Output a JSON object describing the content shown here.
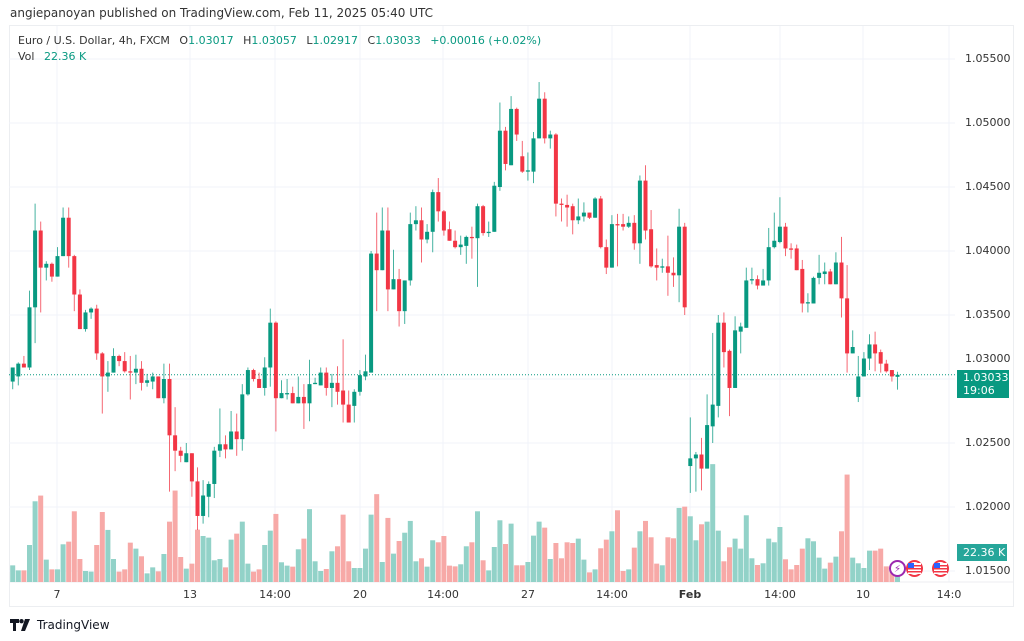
{
  "publish_line": "angiepanoyan published on TradingView.com, Feb 11, 2025 05:40 UTC",
  "legend": {
    "symbol": "Euro / U.S. Dollar, 4h, FXCM",
    "o_label": "O",
    "o": "1.03017",
    "h_label": "H",
    "h": "1.03057",
    "l_label": "L",
    "l": "1.02917",
    "c_label": "C",
    "c": "1.03033",
    "change": "+0.00016 (+0.02%)",
    "vol_label": "Vol",
    "vol": "22.36 K"
  },
  "price_axis": [
    "1.05500",
    "1.05000",
    "1.04500",
    "1.04000",
    "1.03500",
    "1.03000",
    "1.02500",
    "1.02000",
    "1.01500"
  ],
  "time_axis": [
    {
      "label": "7",
      "bold": false
    },
    {
      "label": "13",
      "bold": false
    },
    {
      "label": "14:00",
      "bold": false
    },
    {
      "label": "20",
      "bold": false
    },
    {
      "label": "14:00",
      "bold": false
    },
    {
      "label": "27",
      "bold": false
    },
    {
      "label": "14:00",
      "bold": false
    },
    {
      "label": "Feb",
      "bold": true
    },
    {
      "label": "14:00",
      "bold": false
    },
    {
      "label": "10",
      "bold": false
    },
    {
      "label": "14:0",
      "bold": false
    }
  ],
  "last_price": {
    "value": "1.03033",
    "countdown": "19:06"
  },
  "last_volume": "22.36 K",
  "events": [
    "lightning-icon",
    "us-flag-icon",
    "us-flag-icon"
  ],
  "brand": "TradingView",
  "colors": {
    "up": "#089981",
    "down": "#f23645",
    "vol_up": "#92d2c8",
    "vol_down": "#f7a9a7"
  },
  "chart_data": {
    "type": "candlestick",
    "symbol": "EURUSD",
    "interval": "4h",
    "ylim": [
      1.0135,
      1.0585
    ],
    "volume_unit": "K",
    "columns": [
      "open",
      "high",
      "low",
      "close",
      "volume"
    ],
    "candles": [
      [
        1.0298,
        1.0309,
        1.0292,
        1.0309,
        23.3
      ],
      [
        1.0302,
        1.0313,
        1.0295,
        1.0312,
        16.3
      ],
      [
        1.0312,
        1.0318,
        1.0309,
        1.0309,
        16.3
      ],
      [
        1.0309,
        1.0369,
        1.0307,
        1.0356,
        51.8
      ],
      [
        1.0356,
        1.0437,
        1.0328,
        1.0416,
        113
      ],
      [
        1.0416,
        1.0423,
        1.0352,
        1.0387,
        121
      ],
      [
        1.0387,
        1.0392,
        1.0377,
        1.039,
        31.3
      ],
      [
        1.039,
        1.0391,
        1.0376,
        1.038,
        17.7
      ],
      [
        1.038,
        1.0403,
        1.038,
        1.0396,
        17.7
      ],
      [
        1.0396,
        1.0434,
        1.0396,
        1.0426,
        52.8
      ],
      [
        1.0426,
        1.0434,
        1.0387,
        1.0396,
        56.5
      ],
      [
        1.0396,
        1.0397,
        1.0353,
        1.0366,
        99
      ],
      [
        1.0366,
        1.037,
        1.0339,
        1.0339,
        32.2
      ],
      [
        1.0339,
        1.0354,
        1.0337,
        1.0352,
        15.4
      ],
      [
        1.0352,
        1.0356,
        1.0347,
        1.0355,
        14.5
      ],
      [
        1.0355,
        1.0358,
        1.0315,
        1.032,
        51.8
      ],
      [
        1.032,
        1.0321,
        1.0273,
        1.0302,
        98
      ],
      [
        1.0302,
        1.0314,
        1.029,
        1.0305,
        72.9
      ],
      [
        1.0305,
        1.0324,
        1.0305,
        1.0318,
        32.2
      ],
      [
        1.0318,
        1.0319,
        1.031,
        1.0314,
        14.5
      ],
      [
        1.0314,
        1.0321,
        1.0305,
        1.0306,
        17.7
      ],
      [
        1.0306,
        1.0318,
        1.0284,
        1.0305,
        55.1
      ],
      [
        1.0305,
        1.0319,
        1.0296,
        1.0308,
        46.7
      ],
      [
        1.0308,
        1.0314,
        1.0291,
        1.0297,
        36
      ],
      [
        1.0297,
        1.0304,
        1.0294,
        1.0299,
        12.1
      ],
      [
        1.0298,
        1.0305,
        1.0292,
        1.0302,
        20.5
      ],
      [
        1.0302,
        1.0302,
        1.0285,
        1.0285,
        14.9
      ],
      [
        1.0285,
        1.0312,
        1.0281,
        1.03,
        39.2
      ],
      [
        1.03,
        1.0312,
        1.0212,
        1.0256,
        84.5
      ],
      [
        1.0256,
        1.0278,
        1.0228,
        1.0244,
        128
      ],
      [
        1.0244,
        1.0247,
        1.0235,
        1.024,
        35
      ],
      [
        1.0235,
        1.025,
        1.0235,
        1.0242,
        18.7
      ],
      [
        1.0242,
        1.0242,
        1.0208,
        1.022,
        25.7
      ],
      [
        1.022,
        1.0231,
        1.0182,
        1.0193,
        73.3
      ],
      [
        1.0193,
        1.0221,
        1.0187,
        1.0209,
        64.4
      ],
      [
        1.0208,
        1.022,
        1.0192,
        1.0218,
        62.1
      ],
      [
        1.0218,
        1.0247,
        1.0207,
        1.0244,
        30.4
      ],
      [
        1.0244,
        1.0277,
        1.0239,
        1.0249,
        32.2
      ],
      [
        1.0249,
        1.0256,
        1.0238,
        1.0245,
        20.5
      ],
      [
        1.0245,
        1.0275,
        1.0245,
        1.0259,
        59.3
      ],
      [
        1.0259,
        1.0273,
        1.024,
        1.0253,
        67.7
      ],
      [
        1.0253,
        1.0296,
        1.0244,
        1.0288,
        84.5
      ],
      [
        1.0288,
        1.0309,
        1.0287,
        1.0307,
        25.7
      ],
      [
        1.0307,
        1.0308,
        1.0298,
        1.03,
        14.5
      ],
      [
        1.03,
        1.0305,
        1.0293,
        1.0293,
        17.7
      ],
      [
        1.0293,
        1.0317,
        1.0287,
        1.0309,
        51.8
      ],
      [
        1.0309,
        1.0355,
        1.0294,
        1.0344,
        71.9
      ],
      [
        1.0344,
        1.0345,
        1.0259,
        1.0285,
        95.3
      ],
      [
        1.0285,
        1.0299,
        1.0285,
        1.0289,
        27.6
      ],
      [
        1.0288,
        1.03,
        1.0284,
        1.0289,
        22.9
      ],
      [
        1.0289,
        1.0294,
        1.0281,
        1.0281,
        21.5
      ],
      [
        1.0281,
        1.0302,
        1.0281,
        1.0286,
        45.8
      ],
      [
        1.0286,
        1.0296,
        1.0261,
        1.0281,
        60.7
      ],
      [
        1.0281,
        1.0315,
        1.0267,
        1.0296,
        102
      ],
      [
        1.0296,
        1.0301,
        1.0296,
        1.0297,
        29
      ],
      [
        1.0295,
        1.0309,
        1.0295,
        1.0305,
        15.4
      ],
      [
        1.0305,
        1.0309,
        1.0287,
        1.0293,
        18.2
      ],
      [
        1.0293,
        1.0304,
        1.0278,
        1.0297,
        43
      ],
      [
        1.0297,
        1.031,
        1.028,
        1.029,
        50
      ],
      [
        1.0291,
        1.0331,
        1.0266,
        1.028,
        94.3
      ],
      [
        1.028,
        1.0291,
        1.0266,
        1.0266,
        29
      ],
      [
        1.0279,
        1.0292,
        1.0266,
        1.029,
        19.6
      ],
      [
        1.029,
        1.0307,
        1.0287,
        1.0303,
        19.6
      ],
      [
        1.0302,
        1.0319,
        1.0299,
        1.0306,
        46.7
      ],
      [
        1.0305,
        1.04,
        1.0305,
        1.0398,
        94.3
      ],
      [
        1.0398,
        1.043,
        1.0353,
        1.0385,
        123
      ],
      [
        1.0385,
        1.0434,
        1.0385,
        1.0416,
        28
      ],
      [
        1.0416,
        1.0434,
        1.0353,
        1.037,
        89.7
      ],
      [
        1.037,
        1.0401,
        1.037,
        1.0378,
        39.7
      ],
      [
        1.0378,
        1.0386,
        1.0341,
        1.0353,
        57.4
      ],
      [
        1.0353,
        1.0377,
        1.0343,
        1.0377,
        69
      ],
      [
        1.0377,
        1.043,
        1.0373,
        1.0421,
        85.5
      ],
      [
        1.0421,
        1.0435,
        1.0416,
        1.0424,
        29
      ],
      [
        1.0424,
        1.0434,
        1.0391,
        1.0409,
        33.2
      ],
      [
        1.0409,
        1.0421,
        1.0406,
        1.0415,
        21.5
      ],
      [
        1.0415,
        1.0448,
        1.0399,
        1.0446,
        58.4
      ],
      [
        1.0446,
        1.0457,
        1.0423,
        1.0431,
        55.6
      ],
      [
        1.0431,
        1.0432,
        1.0412,
        1.0416,
        64.4
      ],
      [
        1.0417,
        1.0423,
        1.0408,
        1.0408,
        22.9
      ],
      [
        1.0408,
        1.0416,
        1.0402,
        1.0403,
        21.9
      ],
      [
        1.0403,
        1.0412,
        1.0397,
        1.0405,
        24.8
      ],
      [
        1.0404,
        1.0412,
        1.039,
        1.0411,
        50
      ],
      [
        1.0411,
        1.0419,
        1.0394,
        1.041,
        55.6
      ],
      [
        1.041,
        1.0437,
        1.0372,
        1.0435,
        99
      ],
      [
        1.0435,
        1.0436,
        1.0412,
        1.0414,
        30.4
      ],
      [
        1.0414,
        1.0423,
        1.0411,
        1.0415,
        16.3
      ],
      [
        1.0415,
        1.0454,
        1.0415,
        1.0451,
        49
      ],
      [
        1.045,
        1.0516,
        1.0447,
        1.0494,
        86.4
      ],
      [
        1.0494,
        1.0497,
        1.0463,
        1.0468,
        53.2
      ],
      [
        1.0467,
        1.0521,
        1.0467,
        1.0511,
        81.7
      ],
      [
        1.0511,
        1.0512,
        1.0486,
        1.0491,
        23.4
      ],
      [
        1.0474,
        1.0486,
        1.0461,
        1.0462,
        23.4
      ],
      [
        1.0462,
        1.0477,
        1.0455,
        1.0463,
        28
      ],
      [
        1.0462,
        1.0493,
        1.0453,
        1.0488,
        64.9
      ],
      [
        1.0488,
        1.0532,
        1.0488,
        1.0519,
        84.5
      ],
      [
        1.0519,
        1.0524,
        1.0484,
        1.0488,
        76.1
      ],
      [
        1.0488,
        1.0494,
        1.048,
        1.0491,
        32.2
      ],
      [
        1.0491,
        1.0492,
        1.0427,
        1.0437,
        54.6
      ],
      [
        1.0437,
        1.0441,
        1.0423,
        1.0436,
        33.2
      ],
      [
        1.0436,
        1.0444,
        1.0419,
        1.0434,
        55.6
      ],
      [
        1.0435,
        1.0437,
        1.0413,
        1.0424,
        54.6
      ],
      [
        1.0424,
        1.0441,
        1.0421,
        1.0427,
        60.7
      ],
      [
        1.0427,
        1.0438,
        1.0423,
        1.043,
        31.3
      ],
      [
        1.043,
        1.043,
        1.0425,
        1.0426,
        13.5
      ],
      [
        1.0426,
        1.0442,
        1.0426,
        1.0441,
        17.7
      ],
      [
        1.0441,
        1.0443,
        1.0402,
        1.0403,
        47.2
      ],
      [
        1.0403,
        1.0409,
        1.0382,
        1.0387,
        59.3
      ],
      [
        1.0387,
        1.0428,
        1.0387,
        1.0421,
        71
      ],
      [
        1.0421,
        1.0429,
        1.0388,
        1.042,
        100.4
      ],
      [
        1.0421,
        1.0429,
        1.0416,
        1.0419,
        15.4
      ],
      [
        1.0419,
        1.0427,
        1.0418,
        1.0422,
        17.7
      ],
      [
        1.0422,
        1.0428,
        1.0401,
        1.0406,
        48.1
      ],
      [
        1.0406,
        1.0459,
        1.039,
        1.0455,
        71
      ],
      [
        1.0455,
        1.0467,
        1.0409,
        1.0416,
        85.5
      ],
      [
        1.0417,
        1.0432,
        1.0387,
        1.0388,
        62.6
      ],
      [
        1.0389,
        1.0402,
        1.0377,
        1.0387,
        25.7
      ],
      [
        1.0387,
        1.0394,
        1.0383,
        1.0388,
        23.4
      ],
      [
        1.0388,
        1.0412,
        1.0365,
        1.0383,
        62.6
      ],
      [
        1.0383,
        1.0395,
        1.0372,
        1.0381,
        61.2
      ],
      [
        1.0381,
        1.0433,
        1.036,
        1.0419,
        103.7
      ],
      [
        1.0419,
        1.0422,
        1.035,
        1.0356,
        105.5
      ],
      [
        1.0232,
        1.027,
        1.0211,
        1.0238,
        92
      ],
      [
        1.0238,
        1.0243,
        1.0212,
        1.0241,
        58.4
      ],
      [
        1.0241,
        1.0254,
        1.0213,
        1.023,
        80.8
      ],
      [
        1.023,
        1.0288,
        1.023,
        1.0264,
        84.5
      ],
      [
        1.0263,
        1.0336,
        1.025,
        1.028,
        165
      ],
      [
        1.0279,
        1.035,
        1.027,
        1.0344,
        71.9
      ],
      [
        1.0344,
        1.0352,
        1.0309,
        1.0321,
        29
      ],
      [
        1.0322,
        1.0323,
        1.0271,
        1.0293,
        48.6
      ],
      [
        1.0293,
        1.0349,
        1.0293,
        1.0338,
        60.7
      ],
      [
        1.0337,
        1.0344,
        1.032,
        1.0341,
        46.7
      ],
      [
        1.034,
        1.0387,
        1.034,
        1.0377,
        93.4
      ],
      [
        1.0377,
        1.0387,
        1.0374,
        1.0378,
        33.2
      ],
      [
        1.0378,
        1.0381,
        1.037,
        1.0373,
        23.8
      ],
      [
        1.0373,
        1.0386,
        1.0373,
        1.0377,
        26.2
      ],
      [
        1.0377,
        1.0418,
        1.0373,
        1.0403,
        60.7
      ],
      [
        1.0403,
        1.043,
        1.0402,
        1.0408,
        55.6
      ],
      [
        1.0407,
        1.0442,
        1.0406,
        1.0419,
        77
      ],
      [
        1.0419,
        1.0422,
        1.0396,
        1.0402,
        31.8
      ],
      [
        1.0402,
        1.0406,
        1.0394,
        1.0401,
        17.7
      ],
      [
        1.0402,
        1.0405,
        1.0385,
        1.0385,
        23.8
      ],
      [
        1.0386,
        1.0393,
        1.0352,
        1.0359,
        46.7
      ],
      [
        1.0359,
        1.0367,
        1.0352,
        1.036,
        61.2
      ],
      [
        1.0359,
        1.038,
        1.0359,
        1.0379,
        57
      ],
      [
        1.0379,
        1.0397,
        1.0374,
        1.0383,
        34.1
      ],
      [
        1.0382,
        1.0391,
        1.0374,
        1.0384,
        18.7
      ],
      [
        1.0384,
        1.0386,
        1.0374,
        1.0374,
        27.1
      ],
      [
        1.0374,
        1.0399,
        1.0374,
        1.0391,
        35.5
      ],
      [
        1.0391,
        1.0411,
        1.0348,
        1.0363,
        71
      ],
      [
        1.0363,
        1.0389,
        1.0305,
        1.032,
        150.4
      ],
      [
        1.032,
        1.0338,
        1.032,
        1.0325,
        34.1
      ],
      [
        1.0286,
        1.0318,
        1.0282,
        1.0302,
        26.2
      ],
      [
        1.0302,
        1.0321,
        1.0302,
        1.0316,
        19.6
      ],
      [
        1.0316,
        1.0335,
        1.0307,
        1.0327,
        43.9
      ],
      [
        1.0327,
        1.0337,
        1.0306,
        1.032,
        43.9
      ],
      [
        1.0321,
        1.0323,
        1.0305,
        1.0312,
        46.7
      ],
      [
        1.0312,
        1.0315,
        1.0305,
        1.0306,
        21.9
      ],
      [
        1.0307,
        1.0307,
        1.0298,
        1.0302,
        16.3
      ],
      [
        1.03017,
        1.03057,
        1.02917,
        1.03033,
        22.36
      ]
    ]
  }
}
